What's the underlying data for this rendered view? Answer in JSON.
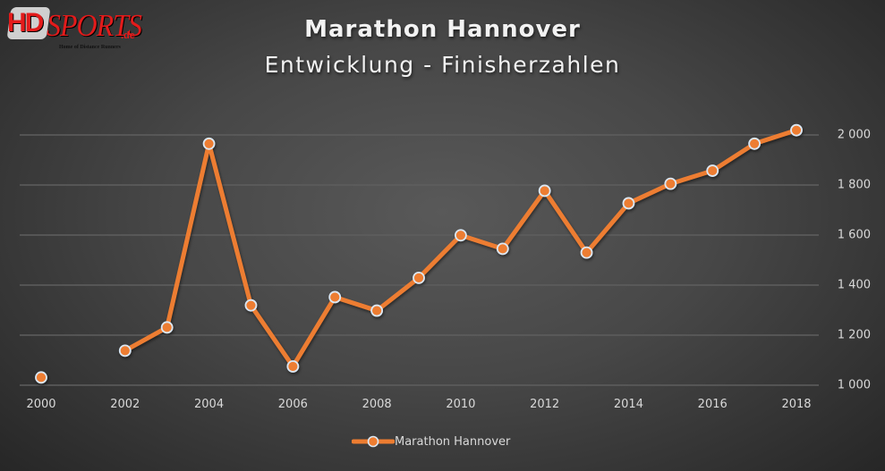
{
  "logo": {
    "hd": "HD",
    "sports": "SPORTS",
    "tld": ".de",
    "tagline": "Home of Distance Runners"
  },
  "header": {
    "title": "Marathon Hannover",
    "subtitle": "Entwicklung - Finisherzahlen"
  },
  "colors": {
    "line": "#ed7d31",
    "marker_fill": "#ed7d31",
    "marker_border": "#dbe7f3",
    "gridline": "#5e5e5e",
    "text": "#d9d9d9",
    "logo_red": "#e31b1b"
  },
  "legend": {
    "label": "Marathon Hannover"
  },
  "chart_data": {
    "type": "line",
    "title": "Marathon Hannover",
    "subtitle": "Entwicklung - Finisherzahlen",
    "xlabel": "",
    "ylabel": "",
    "x": [
      2000,
      2001,
      2002,
      2003,
      2004,
      2005,
      2006,
      2007,
      2008,
      2009,
      2010,
      2011,
      2012,
      2013,
      2014,
      2015,
      2016,
      2017,
      2018
    ],
    "series": [
      {
        "name": "Marathon Hannover",
        "values": [
          1031,
          null,
          1138,
          1231,
          1965,
          1319,
          1075,
          1352,
          1298,
          1429,
          1599,
          1545,
          1777,
          1530,
          1727,
          1805,
          1857,
          1965,
          2019
        ]
      }
    ],
    "x_tick_labels": [
      "2000",
      "2002",
      "2004",
      "2006",
      "2008",
      "2010",
      "2012",
      "2014",
      "2016",
      "2018"
    ],
    "y_tick_labels": [
      "1 000",
      "1 200",
      "1 400",
      "1 600",
      "1 800",
      "2 000"
    ],
    "y_ticks": [
      1000,
      1200,
      1400,
      1600,
      1800,
      2000
    ],
    "ylim": [
      1000,
      2000
    ],
    "y_axis_position": "right",
    "grid": true,
    "legend_position": "bottom"
  }
}
